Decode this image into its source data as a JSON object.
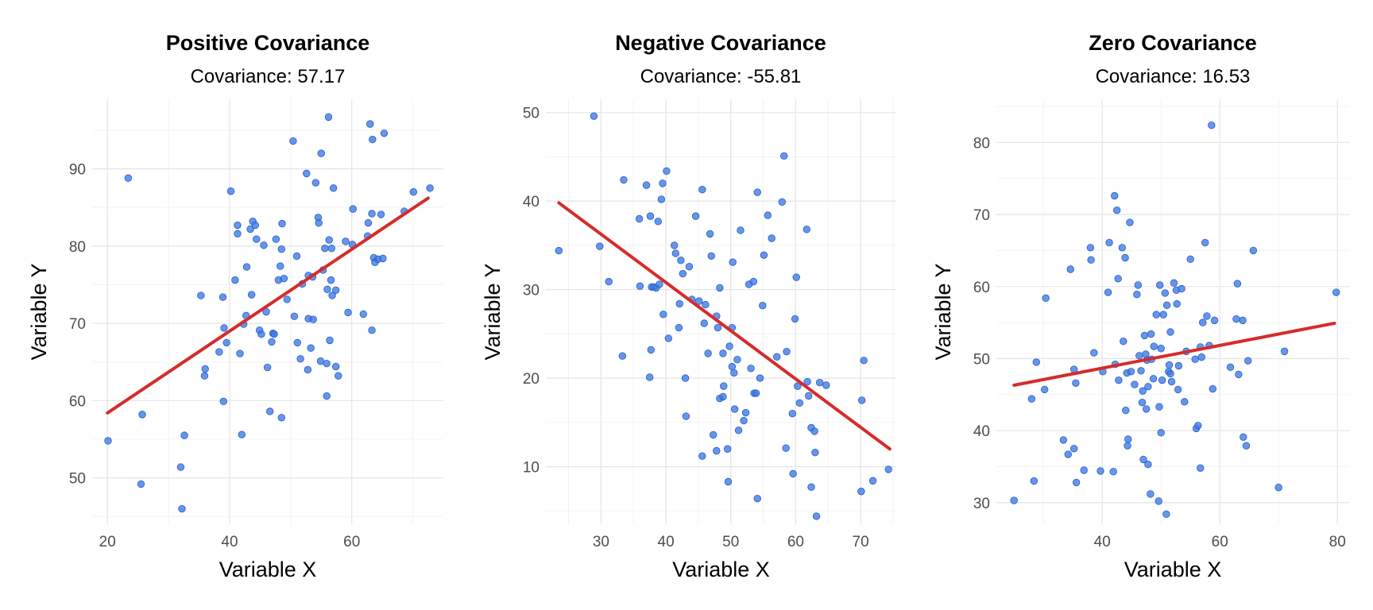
{
  "chart_data": [
    {
      "type": "scatter",
      "title": "Positive Covariance",
      "subtitle": "Covariance: 57.17",
      "xlabel": "Variable X",
      "ylabel": "Variable Y",
      "xlim": [
        17.5,
        75
      ],
      "ylim": [
        44,
        99
      ],
      "xticks": [
        20,
        40,
        60
      ],
      "yticks": [
        50,
        60,
        70,
        80,
        90
      ],
      "grid": true,
      "fit_line": {
        "color": "#d62b2b",
        "x": [
          20,
          72.5
        ],
        "y": [
          58.4,
          86.2
        ]
      },
      "point_color": "#3b78e7",
      "points": [
        [
          20.1,
          54.8
        ],
        [
          23.4,
          88.8
        ],
        [
          25.5,
          49.2
        ],
        [
          25.7,
          58.2
        ],
        [
          32.0,
          51.4
        ],
        [
          32.2,
          46.0
        ],
        [
          32.6,
          55.5
        ],
        [
          35.3,
          73.6
        ],
        [
          35.9,
          63.2
        ],
        [
          36.0,
          64.1
        ],
        [
          38.3,
          66.3
        ],
        [
          38.9,
          73.4
        ],
        [
          39.0,
          59.9
        ],
        [
          39.1,
          69.4
        ],
        [
          39.5,
          67.5
        ],
        [
          40.2,
          87.1
        ],
        [
          40.9,
          75.6
        ],
        [
          41.3,
          81.6
        ],
        [
          41.3,
          82.7
        ],
        [
          41.7,
          66.1
        ],
        [
          42.0,
          55.6
        ],
        [
          42.3,
          69.9
        ],
        [
          42.7,
          71.0
        ],
        [
          42.8,
          77.3
        ],
        [
          43.4,
          82.2
        ],
        [
          43.6,
          73.7
        ],
        [
          43.8,
          83.2
        ],
        [
          44.2,
          82.7
        ],
        [
          44.4,
          80.9
        ],
        [
          44.9,
          69.1
        ],
        [
          45.2,
          68.6
        ],
        [
          45.6,
          80.1
        ],
        [
          46.0,
          71.5
        ],
        [
          46.2,
          64.3
        ],
        [
          46.6,
          58.6
        ],
        [
          46.9,
          67.6
        ],
        [
          47.1,
          68.7
        ],
        [
          47.3,
          68.6
        ],
        [
          47.6,
          80.9
        ],
        [
          48.0,
          75.6
        ],
        [
          48.3,
          77.4
        ],
        [
          48.5,
          57.8
        ],
        [
          48.5,
          79.6
        ],
        [
          48.6,
          82.9
        ],
        [
          48.9,
          75.8
        ],
        [
          49.4,
          73.1
        ],
        [
          50.4,
          93.6
        ],
        [
          50.6,
          70.9
        ],
        [
          51.0,
          78.7
        ],
        [
          51.1,
          67.5
        ],
        [
          51.6,
          65.4
        ],
        [
          51.9,
          75.1
        ],
        [
          52.6,
          89.4
        ],
        [
          52.8,
          64.0
        ],
        [
          52.9,
          70.6
        ],
        [
          52.9,
          76.2
        ],
        [
          53.3,
          66.8
        ],
        [
          53.6,
          76.0
        ],
        [
          53.7,
          70.5
        ],
        [
          54.1,
          88.2
        ],
        [
          54.5,
          83.7
        ],
        [
          54.6,
          83.0
        ],
        [
          54.9,
          65.1
        ],
        [
          55.0,
          92.0
        ],
        [
          55.3,
          76.9
        ],
        [
          55.6,
          79.7
        ],
        [
          55.9,
          64.8
        ],
        [
          55.9,
          60.6
        ],
        [
          56.0,
          74.4
        ],
        [
          56.2,
          96.7
        ],
        [
          56.3,
          80.8
        ],
        [
          56.4,
          67.8
        ],
        [
          56.6,
          75.6
        ],
        [
          56.7,
          79.7
        ],
        [
          56.8,
          73.6
        ],
        [
          57.0,
          87.5
        ],
        [
          57.4,
          74.3
        ],
        [
          57.4,
          64.4
        ],
        [
          57.8,
          63.2
        ],
        [
          59.0,
          80.6
        ],
        [
          59.4,
          71.4
        ],
        [
          60.1,
          80.2
        ],
        [
          60.2,
          84.8
        ],
        [
          61.9,
          71.2
        ],
        [
          62.6,
          81.3
        ],
        [
          62.7,
          83.0
        ],
        [
          63.0,
          95.8
        ],
        [
          63.3,
          84.2
        ],
        [
          63.3,
          69.1
        ],
        [
          63.4,
          93.8
        ],
        [
          63.6,
          78.5
        ],
        [
          63.8,
          77.9
        ],
        [
          64.3,
          78.3
        ],
        [
          64.8,
          84.1
        ],
        [
          65.1,
          78.4
        ],
        [
          65.3,
          94.6
        ],
        [
          68.6,
          84.5
        ],
        [
          70.1,
          87.0
        ],
        [
          72.8,
          87.5
        ]
      ]
    },
    {
      "type": "scatter",
      "title": "Negative Covariance",
      "subtitle": "Covariance: -55.81",
      "xlabel": "Variable X",
      "ylabel": "Variable Y",
      "xlim": [
        21.5,
        75.5
      ],
      "ylim": [
        3.5,
        51.5
      ],
      "xticks": [
        30,
        40,
        50,
        60,
        70
      ],
      "yticks": [
        10,
        20,
        30,
        40,
        50
      ],
      "grid": true,
      "fit_line": {
        "color": "#d62b2b",
        "x": [
          23.5,
          74.5
        ],
        "y": [
          39.8,
          12.0
        ]
      },
      "point_color": "#3b78e7",
      "points": [
        [
          23.5,
          34.4
        ],
        [
          28.9,
          49.6
        ],
        [
          29.8,
          34.9
        ],
        [
          31.2,
          30.9
        ],
        [
          33.3,
          22.5
        ],
        [
          33.5,
          42.4
        ],
        [
          35.9,
          38.0
        ],
        [
          36.0,
          30.4
        ],
        [
          37.0,
          41.8
        ],
        [
          37.5,
          20.1
        ],
        [
          37.6,
          38.3
        ],
        [
          37.7,
          23.2
        ],
        [
          37.8,
          30.3
        ],
        [
          38.1,
          30.3
        ],
        [
          38.5,
          30.2
        ],
        [
          38.8,
          37.7
        ],
        [
          39.0,
          30.6
        ],
        [
          39.3,
          40.2
        ],
        [
          39.5,
          42.0
        ],
        [
          39.6,
          27.2
        ],
        [
          40.1,
          43.4
        ],
        [
          40.4,
          24.5
        ],
        [
          41.3,
          35.0
        ],
        [
          41.5,
          34.1
        ],
        [
          42.0,
          25.7
        ],
        [
          42.1,
          28.4
        ],
        [
          42.3,
          33.3
        ],
        [
          42.6,
          31.8
        ],
        [
          43.0,
          20.0
        ],
        [
          43.1,
          15.7
        ],
        [
          43.6,
          32.6
        ],
        [
          44.0,
          28.9
        ],
        [
          44.6,
          38.3
        ],
        [
          45.1,
          28.7
        ],
        [
          45.6,
          41.3
        ],
        [
          45.6,
          11.2
        ],
        [
          45.9,
          26.2
        ],
        [
          46.1,
          28.3
        ],
        [
          46.5,
          22.8
        ],
        [
          46.8,
          36.3
        ],
        [
          47.0,
          33.8
        ],
        [
          47.3,
          13.6
        ],
        [
          47.8,
          11.8
        ],
        [
          47.8,
          27.0
        ],
        [
          48.0,
          25.7
        ],
        [
          48.3,
          30.2
        ],
        [
          48.3,
          17.7
        ],
        [
          48.8,
          22.8
        ],
        [
          48.8,
          17.9
        ],
        [
          48.9,
          19.1
        ],
        [
          49.5,
          12.0
        ],
        [
          49.6,
          8.3
        ],
        [
          49.8,
          23.6
        ],
        [
          50.2,
          21.3
        ],
        [
          50.2,
          25.7
        ],
        [
          50.3,
          33.1
        ],
        [
          50.5,
          20.6
        ],
        [
          50.6,
          16.5
        ],
        [
          51.0,
          22.1
        ],
        [
          51.2,
          14.1
        ],
        [
          51.5,
          36.7
        ],
        [
          52.0,
          15.2
        ],
        [
          52.3,
          16.1
        ],
        [
          52.8,
          30.6
        ],
        [
          53.1,
          21.1
        ],
        [
          53.5,
          30.9
        ],
        [
          53.6,
          18.3
        ],
        [
          53.9,
          18.3
        ],
        [
          54.1,
          41.0
        ],
        [
          54.1,
          6.4
        ],
        [
          54.5,
          20.0
        ],
        [
          54.9,
          28.2
        ],
        [
          55.1,
          33.9
        ],
        [
          55.7,
          38.4
        ],
        [
          56.3,
          35.8
        ],
        [
          57.1,
          22.4
        ],
        [
          57.9,
          39.9
        ],
        [
          58.2,
          45.1
        ],
        [
          58.5,
          12.1
        ],
        [
          58.6,
          23.0
        ],
        [
          59.5,
          16.0
        ],
        [
          59.6,
          9.2
        ],
        [
          59.9,
          26.7
        ],
        [
          60.1,
          31.4
        ],
        [
          60.3,
          19.1
        ],
        [
          60.6,
          17.2
        ],
        [
          61.7,
          36.8
        ],
        [
          61.8,
          19.6
        ],
        [
          62.0,
          18.0
        ],
        [
          62.4,
          7.7
        ],
        [
          62.4,
          14.4
        ],
        [
          62.9,
          14.0
        ],
        [
          63.0,
          11.6
        ],
        [
          63.2,
          4.4
        ],
        [
          63.7,
          19.5
        ],
        [
          64.7,
          19.2
        ],
        [
          70.1,
          7.2
        ],
        [
          70.2,
          17.5
        ],
        [
          70.5,
          22.0
        ],
        [
          71.9,
          8.4
        ],
        [
          74.3,
          9.7
        ]
      ]
    },
    {
      "type": "scatter",
      "title": "Zero Covariance",
      "subtitle": "Covariance: 16.53",
      "xlabel": "Variable X",
      "ylabel": "Variable Y",
      "xlim": [
        22,
        82
      ],
      "ylim": [
        27,
        86
      ],
      "xticks": [
        40,
        60,
        80
      ],
      "yticks": [
        30,
        40,
        50,
        60,
        70,
        80
      ],
      "grid": true,
      "fit_line": {
        "color": "#d62b2b",
        "x": [
          25,
          79.5
        ],
        "y": [
          46.3,
          54.9
        ]
      },
      "point_color": "#3b78e7",
      "points": [
        [
          25.0,
          30.3
        ],
        [
          28.0,
          44.4
        ],
        [
          28.4,
          33.0
        ],
        [
          28.8,
          49.5
        ],
        [
          30.2,
          45.7
        ],
        [
          30.4,
          58.4
        ],
        [
          33.4,
          38.7
        ],
        [
          34.2,
          36.7
        ],
        [
          34.6,
          62.4
        ],
        [
          35.2,
          48.5
        ],
        [
          35.2,
          37.5
        ],
        [
          35.5,
          46.6
        ],
        [
          35.6,
          32.8
        ],
        [
          36.9,
          34.5
        ],
        [
          38.0,
          65.4
        ],
        [
          38.1,
          63.7
        ],
        [
          38.6,
          50.8
        ],
        [
          39.7,
          34.4
        ],
        [
          40.1,
          48.2
        ],
        [
          41.0,
          59.2
        ],
        [
          41.2,
          66.1
        ],
        [
          41.9,
          34.3
        ],
        [
          42.1,
          72.6
        ],
        [
          42.2,
          49.2
        ],
        [
          42.5,
          70.6
        ],
        [
          42.7,
          61.1
        ],
        [
          42.8,
          47.0
        ],
        [
          43.4,
          65.4
        ],
        [
          43.6,
          52.4
        ],
        [
          43.9,
          64.0
        ],
        [
          44.0,
          42.8
        ],
        [
          44.2,
          48.0
        ],
        [
          44.3,
          37.9
        ],
        [
          44.4,
          38.8
        ],
        [
          44.7,
          68.9
        ],
        [
          44.9,
          48.2
        ],
        [
          45.5,
          46.4
        ],
        [
          45.9,
          58.9
        ],
        [
          46.1,
          60.2
        ],
        [
          46.3,
          50.4
        ],
        [
          46.6,
          48.3
        ],
        [
          46.8,
          43.9
        ],
        [
          46.9,
          45.5
        ],
        [
          47.0,
          36.0
        ],
        [
          47.2,
          53.2
        ],
        [
          47.4,
          50.6
        ],
        [
          47.5,
          43.0
        ],
        [
          47.6,
          49.8
        ],
        [
          47.8,
          46.1
        ],
        [
          47.8,
          35.3
        ],
        [
          48.2,
          31.2
        ],
        [
          48.3,
          53.4
        ],
        [
          48.4,
          49.9
        ],
        [
          48.7,
          47.2
        ],
        [
          48.8,
          51.7
        ],
        [
          49.2,
          56.1
        ],
        [
          49.6,
          30.2
        ],
        [
          49.7,
          43.3
        ],
        [
          49.8,
          60.2
        ],
        [
          50.0,
          51.4
        ],
        [
          50.0,
          39.7
        ],
        [
          50.2,
          47.0
        ],
        [
          50.4,
          56.1
        ],
        [
          50.7,
          59.1
        ],
        [
          50.9,
          28.4
        ],
        [
          51.0,
          57.4
        ],
        [
          51.3,
          48.2
        ],
        [
          51.4,
          49.1
        ],
        [
          51.6,
          53.7
        ],
        [
          51.6,
          47.9
        ],
        [
          51.8,
          46.8
        ],
        [
          52.2,
          60.5
        ],
        [
          52.6,
          59.5
        ],
        [
          52.7,
          57.6
        ],
        [
          52.9,
          45.7
        ],
        [
          53.0,
          49.0
        ],
        [
          53.5,
          59.7
        ],
        [
          54.0,
          44.0
        ],
        [
          54.3,
          51.0
        ],
        [
          55.0,
          63.8
        ],
        [
          55.8,
          49.9
        ],
        [
          56.0,
          40.3
        ],
        [
          56.3,
          40.7
        ],
        [
          56.7,
          51.6
        ],
        [
          56.7,
          34.8
        ],
        [
          56.9,
          50.2
        ],
        [
          57.1,
          55.0
        ],
        [
          57.5,
          66.1
        ],
        [
          57.8,
          55.9
        ],
        [
          58.2,
          51.8
        ],
        [
          58.6,
          82.4
        ],
        [
          58.8,
          45.8
        ],
        [
          59.1,
          55.3
        ],
        [
          61.8,
          48.8
        ],
        [
          62.8,
          55.5
        ],
        [
          63.0,
          60.4
        ],
        [
          63.2,
          47.8
        ],
        [
          63.9,
          55.3
        ],
        [
          64.0,
          39.1
        ],
        [
          64.5,
          37.9
        ],
        [
          64.8,
          49.7
        ],
        [
          65.7,
          65.0
        ],
        [
          70.0,
          32.1
        ],
        [
          71.0,
          51.0
        ],
        [
          79.8,
          59.2
        ]
      ]
    }
  ]
}
